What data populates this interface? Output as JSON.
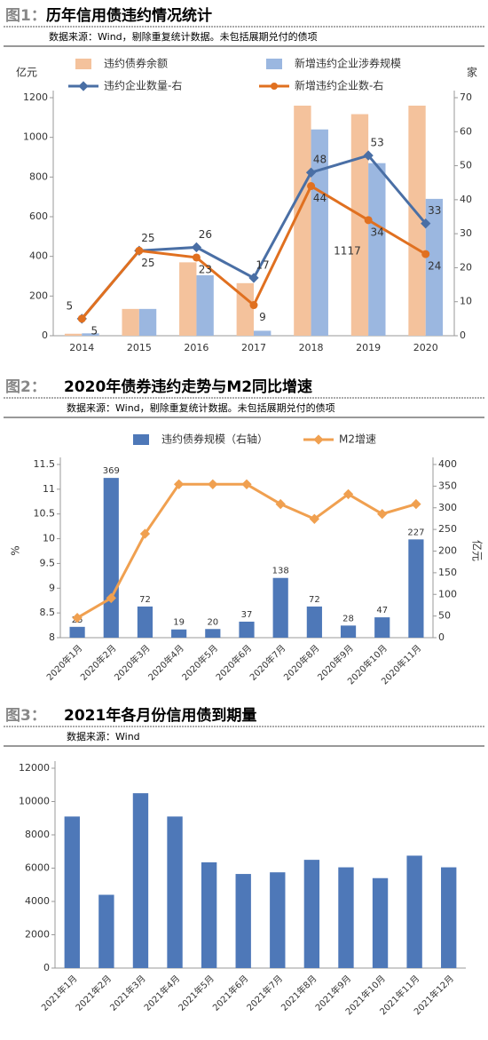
{
  "chart_data": [
    {
      "type": "combo",
      "figure_label": "图1：",
      "title": "历年信用债违约情况统计",
      "source": "数据来源：Wind，剔除重复统计数据。未包括展期兑付的债项",
      "y_label": "亿元",
      "y2_label": "家",
      "categories": [
        "2014",
        "2015",
        "2016",
        "2017",
        "2018",
        "2019",
        "2020"
      ],
      "ylim": [
        0,
        1200
      ],
      "yticks": [
        0,
        200,
        400,
        600,
        800,
        1000,
        1200
      ],
      "y2lim": [
        0,
        70
      ],
      "y2ticks": [
        0,
        10,
        20,
        30,
        40,
        50,
        60,
        70
      ],
      "legend": "top",
      "grid": false,
      "series": [
        {
          "name": "违约债券余额",
          "type": "bar",
          "color": "#f4c29c",
          "values": [
            10,
            135,
            370,
            265,
            1160,
            1117,
            1160
          ],
          "value_labels": [
            null,
            null,
            null,
            null,
            null,
            "1117",
            null
          ]
        },
        {
          "name": "新增违约企业涉券规模",
          "type": "bar",
          "color": "#9bb7e0",
          "values": [
            12,
            135,
            305,
            25,
            1040,
            870,
            690
          ]
        },
        {
          "name": "违约企业数量-右",
          "type": "line",
          "axis": "y2",
          "color": "#4a6fa5",
          "marker": "diamond",
          "data_labels": true,
          "values": [
            5,
            25,
            26,
            17,
            48,
            53,
            33
          ]
        },
        {
          "name": "新增违约企业数-右",
          "type": "line",
          "axis": "y2",
          "color": "#e07020",
          "marker": "circle",
          "data_labels": true,
          "values": [
            5,
            25,
            23,
            9,
            44,
            34,
            24
          ]
        }
      ]
    },
    {
      "type": "combo",
      "figure_label": "图2：",
      "title": "2020年债券违约走势与M2同比增速",
      "source": "数据来源：Wind，剔除重复统计数据。未包括展期兑付的债项",
      "y_label": "%",
      "y2_label": "亿元",
      "categories": [
        "2020年1月",
        "2020年2月",
        "2020年3月",
        "2020年4月",
        "2020年5月",
        "2020年6月",
        "2020年7月",
        "2020年8月",
        "2020年9月",
        "2020年10月",
        "2020年11月"
      ],
      "ylim": [
        8,
        11.5
      ],
      "yticks": [
        8,
        8.5,
        9,
        9.5,
        10,
        10.5,
        11,
        11.5
      ],
      "y2lim": [
        0,
        400
      ],
      "y2ticks": [
        0,
        50,
        100,
        150,
        200,
        250,
        300,
        350,
        400
      ],
      "legend": "top",
      "grid": false,
      "series": [
        {
          "name": "违约债券规模（右轴）",
          "type": "bar",
          "axis": "y2",
          "color": "#4e78b8",
          "data_labels": true,
          "values": [
            25,
            369,
            72,
            19,
            20,
            37,
            138,
            72,
            28,
            47,
            227
          ]
        },
        {
          "name": "M2增速",
          "type": "line",
          "color": "#f0a050",
          "marker": "diamond",
          "values": [
            8.4,
            8.8,
            10.1,
            11.1,
            11.1,
            11.1,
            10.7,
            10.4,
            10.9,
            10.5,
            10.7
          ]
        }
      ]
    },
    {
      "type": "bar",
      "figure_label": "图3：",
      "title": "2021年各月份信用债到期量",
      "source": "数据来源：Wind",
      "categories": [
        "2021年1月",
        "2021年2月",
        "2021年3月",
        "2021年4月",
        "2021年5月",
        "2021年6月",
        "2021年7月",
        "2021年8月",
        "2021年9月",
        "2021年10月",
        "2021年11月",
        "2021年12月"
      ],
      "ylim": [
        0,
        12000
      ],
      "yticks": [
        0,
        2000,
        4000,
        6000,
        8000,
        10000,
        12000
      ],
      "grid": false,
      "series": [
        {
          "name": "到期量",
          "type": "bar",
          "color": "#4e78b8",
          "values": [
            9100,
            4400,
            10500,
            9100,
            6350,
            5650,
            5750,
            6500,
            6050,
            5400,
            6750,
            6050
          ]
        }
      ]
    }
  ]
}
